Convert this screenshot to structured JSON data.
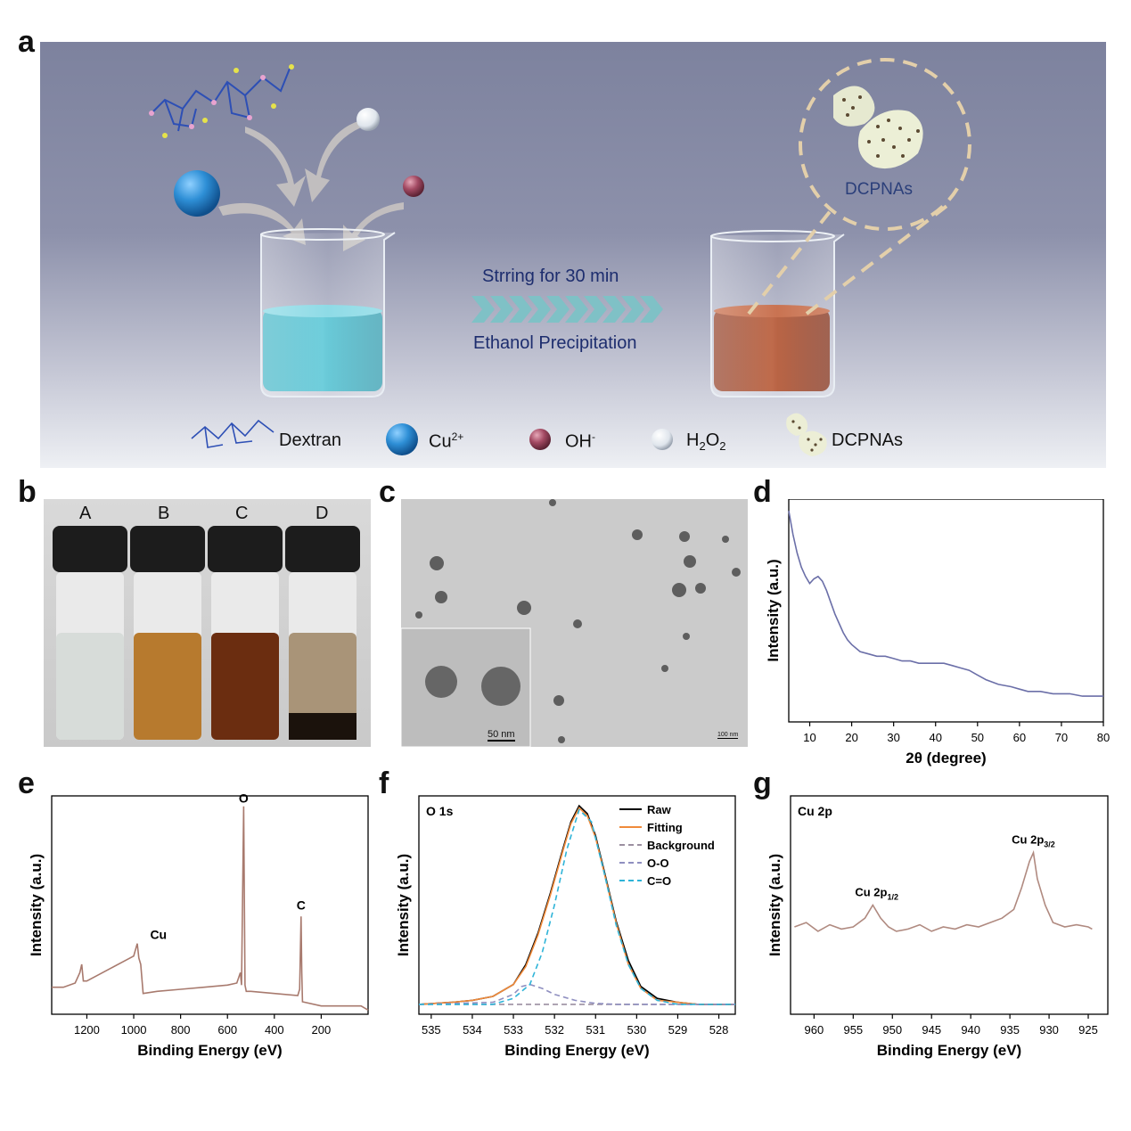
{
  "panel_labels": {
    "a": "a",
    "b": "b",
    "c": "c",
    "d": "d",
    "e": "e",
    "f": "f",
    "g": "g"
  },
  "scheme": {
    "process_top": "Strring for 30 min",
    "process_bottom": "Ethanol Precipitation",
    "zoom_label": "DCPNAs",
    "legend": {
      "dextran": "Dextran",
      "cu": "Cu",
      "cu_sup": "2+",
      "oh": "OH",
      "oh_sup": "-",
      "h2o2_h": "H",
      "h2o2_2a": "2",
      "h2o2_o": "O",
      "h2o2_2b": "2",
      "dcpnas": "DCPNAs"
    }
  },
  "vials": {
    "labels": [
      "A",
      "B",
      "C",
      "D"
    ],
    "liquid_colors": [
      "#d7dcd9",
      "#b77a2e",
      "#6b2d10",
      "#a99478"
    ]
  },
  "tem": {
    "inset_scale": "50 nm",
    "main_scale": "100 nm"
  },
  "chart_data": [
    {
      "id": "d",
      "type": "line",
      "xlabel": "2θ (degree)",
      "ylabel": "Intensity (a.u.)",
      "xlim": [
        5,
        80
      ],
      "xticks": [
        10,
        20,
        30,
        40,
        50,
        60,
        70,
        80
      ],
      "color": "#6b6fa8",
      "x": [
        5,
        6,
        7,
        8,
        9,
        10,
        11,
        12,
        13,
        14,
        15,
        16,
        17,
        18,
        19,
        20,
        22,
        24,
        26,
        28,
        30,
        32,
        34,
        36,
        38,
        40,
        42,
        44,
        46,
        48,
        50,
        52,
        55,
        58,
        60,
        62,
        65,
        68,
        70,
        72,
        75,
        78,
        80
      ],
      "y": [
        100,
        90,
        82,
        76,
        72,
        69,
        71,
        72,
        70,
        66,
        61,
        56,
        52,
        48,
        45,
        43,
        40,
        39,
        38,
        38,
        37,
        36,
        36,
        35,
        35,
        35,
        35,
        34,
        33,
        32,
        30,
        28,
        26,
        25,
        24,
        23,
        23,
        22,
        22,
        22,
        21,
        21,
        21
      ]
    },
    {
      "id": "e",
      "type": "line",
      "xlabel": "Binding Energy (eV)",
      "ylabel": "Intensity (a.u.)",
      "xlim": [
        1350,
        0
      ],
      "xticks": [
        1200,
        1000,
        800,
        600,
        400,
        200
      ],
      "x_reversed": true,
      "color": "#a87a6e",
      "annotations": [
        "O",
        "Cu",
        "C"
      ],
      "x": [
        1350,
        1300,
        1250,
        1230,
        1222,
        1215,
        1200,
        1150,
        1100,
        1050,
        1000,
        985,
        978,
        970,
        960,
        900,
        800,
        700,
        600,
        560,
        545,
        540,
        531,
        525,
        520,
        500,
        400,
        300,
        292,
        286,
        283,
        280,
        200,
        100,
        30,
        0
      ],
      "y": [
        13,
        13,
        15,
        20,
        24,
        16,
        16,
        19,
        22,
        25,
        28,
        34,
        27,
        24,
        10,
        11,
        12,
        13,
        14,
        15,
        20,
        14,
        100,
        14,
        11,
        11,
        10,
        9,
        12,
        47,
        20,
        6,
        4,
        4,
        4,
        2
      ]
    },
    {
      "id": "f",
      "type": "line",
      "title": "O 1s",
      "xlabel": "Binding Energy (eV)",
      "ylabel": "Intensity (a.u.)",
      "xlim": [
        535.3,
        527.6
      ],
      "xticks": [
        535,
        534,
        533,
        532,
        531,
        530,
        529,
        528
      ],
      "x_reversed": true,
      "series": [
        {
          "name": "Raw",
          "color": "#000000",
          "dash": "solid",
          "x": [
            535.3,
            534.5,
            534,
            533.5,
            533,
            532.7,
            532.4,
            532.1,
            531.8,
            531.6,
            531.4,
            531.2,
            531,
            530.8,
            530.5,
            530.2,
            529.9,
            529.5,
            529,
            528.5,
            528,
            527.6
          ],
          "y": [
            0,
            1,
            2,
            4,
            10,
            20,
            36,
            56,
            78,
            92,
            100,
            96,
            85,
            68,
            42,
            22,
            9,
            3,
            1,
            0,
            0,
            0
          ]
        },
        {
          "name": "Fitting",
          "color": "#f08a3a",
          "dash": "solid",
          "x": [
            535.3,
            534.5,
            534,
            533.5,
            533,
            532.7,
            532.4,
            532.1,
            531.8,
            531.6,
            531.4,
            531.2,
            531,
            530.8,
            530.5,
            530.2,
            529.9,
            529.5,
            529,
            528.5,
            528,
            527.6
          ],
          "y": [
            0,
            1,
            2,
            4,
            10,
            19,
            35,
            55,
            77,
            91,
            99,
            95,
            84,
            67,
            41,
            20,
            8,
            2,
            1,
            0,
            0,
            0
          ]
        },
        {
          "name": "Background",
          "color": "#9b8fa0",
          "dash": "dashed",
          "x": [
            535.3,
            527.6
          ],
          "y": [
            0,
            0
          ]
        },
        {
          "name": "O-O",
          "color": "#8f8fc0",
          "dash": "dashed",
          "x": [
            535.3,
            533.5,
            533,
            532.8,
            532.6,
            532.3,
            532,
            531.5,
            531,
            530.5,
            527.6
          ],
          "y": [
            0,
            1,
            5,
            9,
            10,
            8,
            5,
            2,
            0.5,
            0,
            0
          ]
        },
        {
          "name": "C=O",
          "color": "#2fb4d8",
          "dash": "dashed",
          "x": [
            535.3,
            534,
            533.5,
            533,
            532.6,
            532.3,
            532,
            531.7,
            531.4,
            531.1,
            530.8,
            530.5,
            530.2,
            529.9,
            529.5,
            529,
            528.5,
            527.6
          ],
          "y": [
            0,
            0,
            0,
            3,
            10,
            26,
            50,
            78,
            98,
            92,
            67,
            40,
            20,
            8,
            2,
            0,
            0,
            0
          ]
        }
      ]
    },
    {
      "id": "g",
      "type": "line",
      "title": "Cu 2p",
      "xlabel": "Binding Energy (eV)",
      "ylabel": "Intensity (a.u.)",
      "xlim": [
        963,
        922.5
      ],
      "xticks": [
        960,
        955,
        950,
        945,
        940,
        935,
        930,
        925
      ],
      "x_reversed": true,
      "color": "#b08a80",
      "annotations": [
        {
          "text": "Cu 2p",
          "sub": "1/2"
        },
        {
          "text": "Cu 2p",
          "sub": "3/2"
        }
      ],
      "x": [
        962.5,
        961,
        959.5,
        958,
        956.5,
        955,
        953.5,
        952.5,
        951.5,
        950.5,
        949.5,
        948,
        946.5,
        945,
        943.5,
        942,
        940.5,
        939,
        937.5,
        936,
        934.5,
        933.5,
        932.5,
        932,
        931.5,
        930.5,
        929.5,
        928,
        926.5,
        925,
        924.5
      ],
      "y": [
        40,
        42,
        38,
        41,
        39,
        40,
        44,
        50,
        44,
        40,
        38,
        39,
        41,
        38,
        40,
        39,
        41,
        40,
        42,
        44,
        48,
        58,
        70,
        74,
        62,
        50,
        42,
        40,
        41,
        40,
        39
      ]
    }
  ]
}
